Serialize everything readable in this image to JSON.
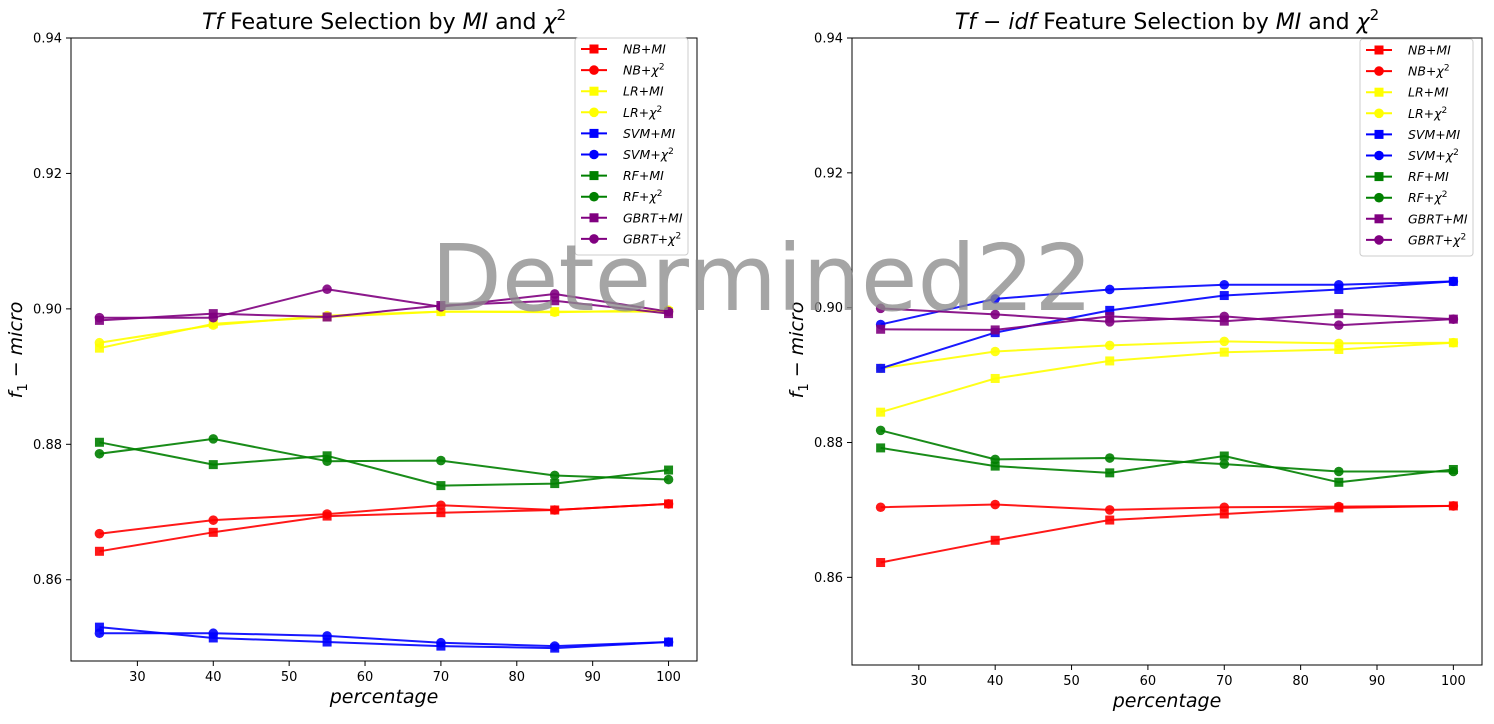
{
  "watermark": "Determined22",
  "charts": [
    {
      "id": "tf",
      "title_parts": [
        {
          "t": "Tf",
          "i": true
        },
        {
          "t": " Feature Selection by ",
          "i": false
        },
        {
          "t": "MI",
          "i": true
        },
        {
          "t": " and ",
          "i": false
        },
        {
          "t": "χ",
          "i": true
        }
      ],
      "title_sup": "2",
      "xlabel": "percentage",
      "ylabel_main": "f",
      "ylabel_sub": "1",
      "ylabel_rest": " − micro"
    },
    {
      "id": "tfidf",
      "title_parts": [
        {
          "t": "Tf − idf",
          "i": true
        },
        {
          "t": " Feature Selection by ",
          "i": false
        },
        {
          "t": "MI",
          "i": true
        },
        {
          "t": " and ",
          "i": false
        },
        {
          "t": "χ",
          "i": true
        }
      ],
      "title_sup": "2",
      "xlabel": "percentage",
      "ylabel_main": "f",
      "ylabel_sub": "1",
      "ylabel_rest": " − micro"
    }
  ],
  "chart_data": [
    {
      "type": "line",
      "title": "Tf Feature Selection by MI and χ2",
      "xlabel": "percentage",
      "ylabel": "f1 − micro",
      "x": [
        25,
        40,
        55,
        70,
        85,
        100
      ],
      "xlim": [
        21.25,
        103.75
      ],
      "ylim": [
        0.848,
        0.94
      ],
      "xticks": [
        30,
        40,
        50,
        60,
        70,
        80,
        90,
        100
      ],
      "yticks": [
        0.86,
        0.88,
        0.9,
        0.92,
        0.94
      ],
      "ytick_labels": [
        "0.86",
        "0.88",
        "0.90",
        "0.92",
        "0.94"
      ],
      "grid": false,
      "legend_position": "top-right",
      "series": [
        {
          "name": "NB+MI",
          "color": "#ff0000",
          "marker": "square",
          "values": [
            0.8642,
            0.867,
            0.8694,
            0.8699,
            0.8703,
            0.8712
          ]
        },
        {
          "name": "NB+χ2",
          "color": "#ff0000",
          "marker": "circle",
          "values": [
            0.8668,
            0.8688,
            0.8697,
            0.871,
            0.8703,
            0.8712
          ]
        },
        {
          "name": "LR+MI",
          "color": "#ffff00",
          "marker": "square",
          "values": [
            0.8942,
            0.8978,
            0.8988,
            0.8996,
            0.8996,
            0.8996
          ]
        },
        {
          "name": "LR+χ2",
          "color": "#ffff00",
          "marker": "circle",
          "values": [
            0.895,
            0.8976,
            0.899,
            0.8996,
            0.8995,
            0.8998
          ]
        },
        {
          "name": "SVM+MI",
          "color": "#0000ff",
          "marker": "square",
          "values": [
            0.853,
            0.8514,
            0.8508,
            0.8502,
            0.8499,
            0.8508
          ]
        },
        {
          "name": "SVM+χ2",
          "color": "#0000ff",
          "marker": "circle",
          "values": [
            0.8521,
            0.8521,
            0.8517,
            0.8507,
            0.8502,
            0.8508
          ]
        },
        {
          "name": "RF+MI",
          "color": "#008000",
          "marker": "square",
          "values": [
            0.8803,
            0.877,
            0.8783,
            0.8739,
            0.8742,
            0.8762
          ]
        },
        {
          "name": "RF+χ2",
          "color": "#008000",
          "marker": "circle",
          "values": [
            0.8786,
            0.8808,
            0.8775,
            0.8776,
            0.8754,
            0.8748
          ]
        },
        {
          "name": "GBRT+MI",
          "color": "#800080",
          "marker": "square",
          "values": [
            0.8983,
            0.8993,
            0.8988,
            0.9005,
            0.9012,
            0.8993
          ]
        },
        {
          "name": "GBRT+χ2",
          "color": "#800080",
          "marker": "circle",
          "values": [
            0.8987,
            0.8987,
            0.9029,
            0.9003,
            0.9022,
            0.8996
          ]
        }
      ]
    },
    {
      "type": "line",
      "title": "Tf − idf Feature Selection by MI and χ2",
      "xlabel": "percentage",
      "ylabel": "f1 − micro",
      "x": [
        25,
        40,
        55,
        70,
        85,
        100
      ],
      "xlim": [
        21.25,
        103.75
      ],
      "ylim": [
        0.847,
        0.94
      ],
      "xticks": [
        30,
        40,
        50,
        60,
        70,
        80,
        90,
        100
      ],
      "yticks": [
        0.86,
        0.88,
        0.9,
        0.92,
        0.94
      ],
      "ytick_labels": [
        "0.86",
        "0.88",
        "0.90",
        "0.92",
        "0.94"
      ],
      "grid": false,
      "legend_position": "top-right",
      "series": [
        {
          "name": "NB+MI",
          "color": "#ff0000",
          "marker": "square",
          "values": [
            0.8622,
            0.8655,
            0.8685,
            0.8694,
            0.8703,
            0.8706
          ]
        },
        {
          "name": "NB+χ2",
          "color": "#ff0000",
          "marker": "circle",
          "values": [
            0.8704,
            0.8708,
            0.87,
            0.8704,
            0.8705,
            0.8706
          ]
        },
        {
          "name": "LR+MI",
          "color": "#ffff00",
          "marker": "square",
          "values": [
            0.8845,
            0.8895,
            0.8921,
            0.8934,
            0.8938,
            0.8948
          ]
        },
        {
          "name": "LR+χ2",
          "color": "#ffff00",
          "marker": "circle",
          "values": [
            0.891,
            0.8935,
            0.8944,
            0.895,
            0.8947,
            0.8948
          ]
        },
        {
          "name": "SVM+MI",
          "color": "#0000ff",
          "marker": "square",
          "values": [
            0.891,
            0.8963,
            0.8996,
            0.9018,
            0.9027,
            0.9039
          ]
        },
        {
          "name": "SVM+χ2",
          "color": "#0000ff",
          "marker": "circle",
          "values": [
            0.8975,
            0.9013,
            0.9027,
            0.9034,
            0.9034,
            0.9039
          ]
        },
        {
          "name": "RF+MI",
          "color": "#008000",
          "marker": "square",
          "values": [
            0.8792,
            0.8765,
            0.8755,
            0.878,
            0.8741,
            0.876
          ]
        },
        {
          "name": "RF+χ2",
          "color": "#008000",
          "marker": "circle",
          "values": [
            0.8818,
            0.8775,
            0.8777,
            0.8768,
            0.8757,
            0.8757
          ]
        },
        {
          "name": "GBRT+MI",
          "color": "#800080",
          "marker": "square",
          "values": [
            0.8968,
            0.8967,
            0.8987,
            0.898,
            0.8991,
            0.8983
          ]
        },
        {
          "name": "GBRT+χ2",
          "color": "#800080",
          "marker": "circle",
          "values": [
            0.8999,
            0.899,
            0.8979,
            0.8987,
            0.8974,
            0.8983
          ]
        }
      ]
    }
  ]
}
